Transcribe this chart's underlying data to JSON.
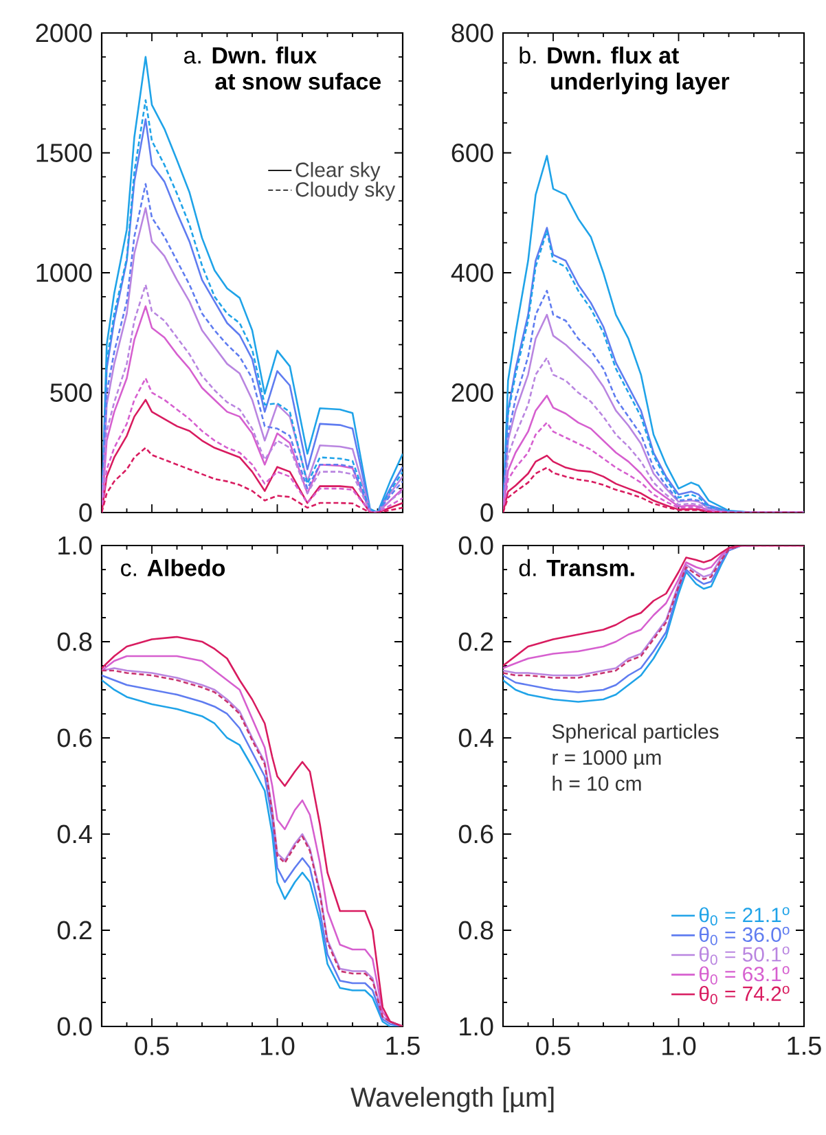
{
  "chart_data": [
    {
      "type": "line",
      "title": "a. **Dwn. flux**",
      "subtitle": "at snow suface",
      "annotations": [
        "Clear sky",
        "Cloudy sky"
      ],
      "legend": "top right",
      "tick_labels": "y",
      "xlim": [
        0.3,
        1.5
      ],
      "xticks": [
        0.5,
        1.0,
        1.5
      ],
      "ylim": [
        0,
        2000
      ],
      "yticks": [
        0,
        500,
        1000,
        1500,
        2000
      ],
      "x": [
        0.3,
        0.32,
        0.35,
        0.4,
        0.43,
        0.475,
        0.5,
        0.55,
        0.6,
        0.65,
        0.7,
        0.75,
        0.8,
        0.85,
        0.9,
        0.95,
        1.0,
        1.05,
        1.12,
        1.17,
        1.25,
        1.3,
        1.37,
        1.4,
        1.45,
        1.5
      ],
      "series": [
        {
          "color": "#1fa3e8",
          "line_style": "solid",
          "values": [
            0,
            700,
            915,
            1180,
            1565,
            1900,
            1700,
            1600,
            1470,
            1335,
            1145,
            1010,
            935,
            895,
            760,
            495,
            675,
            610,
            245,
            435,
            430,
            415,
            15,
            0,
            130,
            245
          ]
        },
        {
          "color": "#5f7cf0",
          "line_style": "solid",
          "values": [
            0,
            600,
            800,
            1050,
            1380,
            1640,
            1450,
            1380,
            1250,
            1130,
            970,
            880,
            790,
            740,
            640,
            420,
            590,
            530,
            180,
            370,
            365,
            350,
            10,
            0,
            100,
            190
          ]
        },
        {
          "color": "#b985e0",
          "line_style": "solid",
          "values": [
            0,
            450,
            620,
            830,
            1080,
            1270,
            1130,
            1070,
            970,
            880,
            760,
            690,
            620,
            580,
            470,
            300,
            450,
            400,
            130,
            280,
            275,
            265,
            8,
            0,
            80,
            150
          ]
        },
        {
          "color": "#d65fcf",
          "line_style": "solid",
          "values": [
            0,
            300,
            420,
            560,
            720,
            860,
            770,
            730,
            660,
            600,
            520,
            470,
            420,
            400,
            330,
            200,
            330,
            290,
            80,
            200,
            195,
            185,
            5,
            0,
            50,
            100
          ]
        },
        {
          "color": "#d81b5f",
          "line_style": "solid",
          "values": [
            0,
            150,
            230,
            320,
            400,
            470,
            420,
            390,
            360,
            340,
            300,
            270,
            250,
            230,
            170,
            90,
            190,
            170,
            40,
            110,
            110,
            105,
            0,
            0,
            20,
            40
          ]
        },
        {
          "color": "#1fa3e8",
          "line_style": "dashed",
          "values": [
            0,
            630,
            830,
            1060,
            1420,
            1720,
            1550,
            1450,
            1330,
            1200,
            1030,
            900,
            830,
            790,
            680,
            450,
            455,
            420,
            120,
            230,
            225,
            215,
            10,
            0,
            90,
            170
          ]
        },
        {
          "color": "#5f7cf0",
          "line_style": "dashed",
          "values": [
            0,
            500,
            670,
            880,
            1150,
            1370,
            1230,
            1150,
            1050,
            950,
            830,
            760,
            700,
            650,
            560,
            360,
            350,
            320,
            100,
            200,
            200,
            190,
            5,
            0,
            70,
            130
          ]
        },
        {
          "color": "#b985e0",
          "line_style": "dashed",
          "values": [
            0,
            340,
            460,
            620,
            800,
            950,
            840,
            800,
            730,
            660,
            570,
            510,
            460,
            430,
            350,
            220,
            300,
            270,
            80,
            170,
            170,
            160,
            5,
            0,
            50,
            90
          ]
        },
        {
          "color": "#d65fcf",
          "line_style": "dashed",
          "values": [
            0,
            180,
            270,
            370,
            470,
            560,
            500,
            470,
            430,
            390,
            340,
            300,
            270,
            250,
            200,
            120,
            170,
            150,
            40,
            100,
            100,
            95,
            3,
            0,
            30,
            60
          ]
        },
        {
          "color": "#d81b5f",
          "line_style": "dashed",
          "values": [
            0,
            80,
            130,
            180,
            230,
            270,
            240,
            220,
            200,
            180,
            160,
            140,
            130,
            115,
            90,
            50,
            70,
            65,
            20,
            40,
            40,
            38,
            0,
            0,
            10,
            20
          ]
        }
      ]
    },
    {
      "type": "line",
      "title": "b. **Dwn. flux at**",
      "subtitle": "underlying layer",
      "tick_labels": "y",
      "xlim": [
        0.3,
        1.5
      ],
      "xticks": [
        0.5,
        1.0,
        1.5
      ],
      "ylim": [
        0,
        800
      ],
      "yticks": [
        0,
        200,
        400,
        600,
        800
      ],
      "x": [
        0.3,
        0.32,
        0.35,
        0.4,
        0.43,
        0.475,
        0.5,
        0.55,
        0.6,
        0.65,
        0.7,
        0.75,
        0.8,
        0.85,
        0.9,
        0.95,
        1.0,
        1.05,
        1.08,
        1.12,
        1.2,
        1.3,
        1.4,
        1.5
      ],
      "series": [
        {
          "color": "#1fa3e8",
          "line_style": "solid",
          "values": [
            0,
            220,
            300,
            420,
            530,
            595,
            540,
            530,
            490,
            460,
            400,
            330,
            290,
            230,
            130,
            80,
            40,
            50,
            45,
            20,
            3,
            0,
            0,
            0
          ]
        },
        {
          "color": "#5f7cf0",
          "line_style": "solid",
          "values": [
            0,
            170,
            240,
            330,
            420,
            475,
            430,
            420,
            380,
            350,
            310,
            250,
            210,
            170,
            100,
            60,
            30,
            35,
            30,
            12,
            2,
            0,
            0,
            0
          ]
        },
        {
          "color": "#b985e0",
          "line_style": "solid",
          "values": [
            0,
            120,
            170,
            230,
            290,
            330,
            295,
            280,
            260,
            240,
            210,
            170,
            145,
            115,
            65,
            40,
            18,
            20,
            18,
            7,
            1,
            0,
            0,
            0
          ]
        },
        {
          "color": "#d65fcf",
          "line_style": "solid",
          "values": [
            0,
            70,
            100,
            135,
            170,
            195,
            175,
            165,
            150,
            140,
            120,
            100,
            85,
            65,
            40,
            25,
            10,
            12,
            10,
            4,
            0,
            0,
            0,
            0
          ]
        },
        {
          "color": "#d81b5f",
          "line_style": "solid",
          "values": [
            0,
            35,
            45,
            65,
            85,
            95,
            85,
            75,
            70,
            68,
            60,
            48,
            40,
            32,
            20,
            12,
            5,
            6,
            5,
            2,
            0,
            0,
            0,
            0
          ]
        },
        {
          "color": "#1fa3e8",
          "line_style": "dashed",
          "values": [
            0,
            165,
            230,
            320,
            410,
            470,
            420,
            410,
            370,
            340,
            300,
            240,
            200,
            160,
            95,
            55,
            25,
            30,
            25,
            10,
            2,
            0,
            0,
            0
          ]
        },
        {
          "color": "#5f7cf0",
          "line_style": "dashed",
          "values": [
            0,
            130,
            190,
            260,
            330,
            370,
            330,
            320,
            290,
            270,
            240,
            190,
            160,
            130,
            75,
            45,
            20,
            22,
            20,
            8,
            1,
            0,
            0,
            0
          ]
        },
        {
          "color": "#b985e0",
          "line_style": "dashed",
          "values": [
            0,
            95,
            130,
            180,
            230,
            258,
            230,
            220,
            200,
            185,
            160,
            130,
            110,
            85,
            50,
            30,
            13,
            15,
            13,
            5,
            0,
            0,
            0,
            0
          ]
        },
        {
          "color": "#d65fcf",
          "line_style": "dashed",
          "values": [
            0,
            55,
            75,
            100,
            130,
            150,
            135,
            125,
            115,
            105,
            90,
            75,
            63,
            50,
            30,
            18,
            8,
            9,
            8,
            3,
            0,
            0,
            0,
            0
          ]
        },
        {
          "color": "#d81b5f",
          "line_style": "dashed",
          "values": [
            0,
            25,
            35,
            50,
            65,
            75,
            66,
            60,
            55,
            52,
            46,
            38,
            32,
            25,
            15,
            9,
            4,
            4,
            4,
            1,
            0,
            0,
            0,
            0
          ]
        }
      ]
    },
    {
      "type": "line",
      "title": "c. **Albedo**",
      "xlabel": "Wavelength [µm]",
      "xlim": [
        0.3,
        1.5
      ],
      "xticks": [
        {
          "value": 0.5,
          "label": "0.5"
        },
        {
          "value": 1.0,
          "label": "1.0"
        },
        {
          "value": 1.5,
          "label": "1.5"
        }
      ],
      "ylim": [
        0,
        1
      ],
      "yticks": [
        {
          "value": 0,
          "label": "0.0"
        },
        {
          "value": 0.2,
          "label": "0.2"
        },
        {
          "value": 0.4,
          "label": "0.4"
        },
        {
          "value": 0.6,
          "label": "0.6"
        },
        {
          "value": 0.8,
          "label": "0.8"
        },
        {
          "value": 1.0,
          "label": "1.0"
        }
      ],
      "x": [
        0.3,
        0.35,
        0.4,
        0.5,
        0.6,
        0.7,
        0.75,
        0.8,
        0.85,
        0.9,
        0.95,
        0.98,
        1.0,
        1.03,
        1.07,
        1.1,
        1.13,
        1.17,
        1.2,
        1.25,
        1.3,
        1.35,
        1.38,
        1.42,
        1.45,
        1.5
      ],
      "series": [
        {
          "color": "#1fa3e8",
          "line_style": "solid",
          "values": [
            0.72,
            0.7,
            0.685,
            0.67,
            0.66,
            0.645,
            0.63,
            0.6,
            0.585,
            0.54,
            0.49,
            0.4,
            0.3,
            0.265,
            0.3,
            0.32,
            0.3,
            0.22,
            0.13,
            0.08,
            0.075,
            0.075,
            0.06,
            0.01,
            0.0,
            0.0
          ]
        },
        {
          "color": "#5f7cf0",
          "line_style": "solid",
          "values": [
            0.73,
            0.72,
            0.71,
            0.7,
            0.69,
            0.675,
            0.665,
            0.65,
            0.62,
            0.57,
            0.52,
            0.43,
            0.33,
            0.3,
            0.33,
            0.35,
            0.33,
            0.24,
            0.15,
            0.095,
            0.09,
            0.09,
            0.075,
            0.015,
            0.005,
            0.0
          ]
        },
        {
          "color": "#b985e0",
          "line_style": "solid",
          "values": [
            0.74,
            0.745,
            0.74,
            0.735,
            0.725,
            0.71,
            0.7,
            0.68,
            0.655,
            0.6,
            0.55,
            0.45,
            0.36,
            0.345,
            0.38,
            0.4,
            0.37,
            0.28,
            0.18,
            0.12,
            0.115,
            0.115,
            0.1,
            0.02,
            0.01,
            0.0
          ]
        },
        {
          "color": "#d65fcf",
          "line_style": "solid",
          "values": [
            0.74,
            0.76,
            0.77,
            0.77,
            0.77,
            0.76,
            0.74,
            0.72,
            0.7,
            0.64,
            0.58,
            0.5,
            0.43,
            0.41,
            0.45,
            0.47,
            0.44,
            0.34,
            0.24,
            0.17,
            0.16,
            0.16,
            0.14,
            0.03,
            0.01,
            0.0
          ]
        },
        {
          "color": "#d81b5f",
          "line_style": "solid",
          "values": [
            0.745,
            0.77,
            0.79,
            0.805,
            0.81,
            0.8,
            0.785,
            0.765,
            0.72,
            0.68,
            0.63,
            0.56,
            0.52,
            0.5,
            0.53,
            0.55,
            0.53,
            0.42,
            0.32,
            0.24,
            0.24,
            0.24,
            0.2,
            0.04,
            0.01,
            0.0
          ]
        },
        {
          "color": "#c8336f",
          "line_style": "dashed",
          "values": [
            0.74,
            0.74,
            0.735,
            0.73,
            0.72,
            0.705,
            0.695,
            0.675,
            0.65,
            0.595,
            0.545,
            0.445,
            0.355,
            0.34,
            0.375,
            0.395,
            0.365,
            0.275,
            0.175,
            0.115,
            0.11,
            0.11,
            0.095,
            0.02,
            0.01,
            0.0
          ]
        }
      ]
    },
    {
      "type": "line",
      "title": "d. **Transm.**",
      "annotations": [
        "Spherical particles",
        "r = 1000 µm",
        "h = 10 cm"
      ],
      "legend": "bottom right",
      "xlim": [
        0.3,
        1.5
      ],
      "xticks": [
        {
          "value": 0.5,
          "label": "0.5"
        },
        {
          "value": 1.0,
          "label": "1.0"
        },
        {
          "value": 1.5,
          "label": "1.5"
        }
      ],
      "ylim": [
        1,
        0
      ],
      "yticks": [
        {
          "value": 0,
          "label": "0.0"
        },
        {
          "value": 0.2,
          "label": "0.2"
        },
        {
          "value": 0.4,
          "label": "0.4"
        },
        {
          "value": 0.6,
          "label": "0.6"
        },
        {
          "value": 0.8,
          "label": "0.8"
        },
        {
          "value": 1.0,
          "label": "1.0"
        }
      ],
      "x": [
        0.3,
        0.35,
        0.4,
        0.5,
        0.6,
        0.7,
        0.75,
        0.8,
        0.85,
        0.9,
        0.95,
        1.0,
        1.03,
        1.07,
        1.1,
        1.13,
        1.17,
        1.2,
        1.25,
        1.3,
        1.4,
        1.5
      ],
      "series": [
        {
          "name": "θ$_{0}$ = 21.1$^{o}$",
          "color": "#1fa3e8",
          "line_style": "solid",
          "values": [
            0.28,
            0.3,
            0.31,
            0.32,
            0.325,
            0.32,
            0.31,
            0.29,
            0.27,
            0.235,
            0.19,
            0.1,
            0.055,
            0.08,
            0.09,
            0.085,
            0.04,
            0.01,
            0,
            0,
            null,
            null
          ]
        },
        {
          "name": "θ$_{0}$ = 36.0$^{o}$",
          "color": "#5f7cf0",
          "line_style": "solid",
          "values": [
            0.27,
            0.285,
            0.29,
            0.3,
            0.305,
            0.3,
            0.29,
            0.27,
            0.255,
            0.22,
            0.18,
            0.09,
            0.05,
            0.07,
            0.08,
            0.075,
            0.035,
            0.01,
            0,
            0,
            null,
            null
          ]
        },
        {
          "name": "θ$_{0}$ = 50.1$^{o}$",
          "color": "#b985e0",
          "line_style": "solid",
          "values": [
            0.26,
            0.265,
            0.265,
            0.27,
            0.27,
            0.26,
            0.255,
            0.235,
            0.225,
            0.19,
            0.155,
            0.08,
            0.04,
            0.055,
            0.065,
            0.06,
            0.025,
            0.008,
            0,
            0,
            0,
            0
          ]
        },
        {
          "name": "θ$_{0}$ = 63.1$^{o}$",
          "color": "#d65fcf",
          "line_style": "solid",
          "values": [
            0.255,
            0.245,
            0.235,
            0.225,
            0.22,
            0.21,
            0.2,
            0.185,
            0.175,
            0.145,
            0.12,
            0.07,
            0.035,
            0.045,
            0.05,
            0.045,
            0.02,
            0.005,
            0,
            0,
            0,
            0
          ]
        },
        {
          "name": "θ$_{0}$ = 74.2$^{o}$",
          "color": "#d81b5f",
          "line_style": "solid",
          "values": [
            0.25,
            0.23,
            0.21,
            0.195,
            0.185,
            0.175,
            0.165,
            0.15,
            0.14,
            0.115,
            0.1,
            0.055,
            0.025,
            0.03,
            0.035,
            0.03,
            0.015,
            0.005,
            0,
            0,
            0,
            0
          ]
        },
        {
          "color": "#c8336f",
          "line_style": "dashed",
          "values": [
            0.265,
            0.27,
            0.27,
            0.275,
            0.275,
            0.265,
            0.26,
            0.24,
            0.23,
            0.195,
            0.16,
            0.085,
            0.045,
            0.06,
            0.07,
            0.065,
            0.03,
            0.008,
            0,
            0,
            0,
            0
          ]
        }
      ]
    }
  ]
}
